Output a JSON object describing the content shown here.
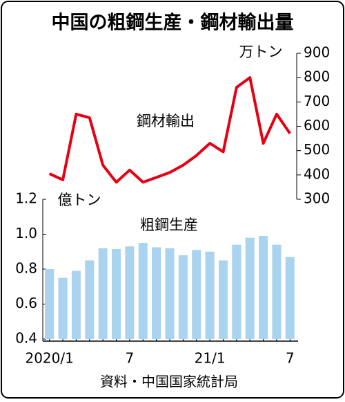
{
  "chart_data": {
    "type": "bar",
    "title": "中国の粗鋼生産・鋼材輸出量",
    "categories": [
      "2020/1",
      null,
      null,
      null,
      null,
      null,
      "7",
      null,
      null,
      null,
      null,
      null,
      "21/1",
      null,
      null,
      null,
      null,
      null,
      "7"
    ],
    "series": [
      {
        "name": "粗鋼生産",
        "type": "bar",
        "color": "#a9d3ee",
        "values": [
          0.8,
          0.75,
          0.79,
          0.85,
          0.92,
          0.915,
          0.93,
          0.95,
          0.925,
          0.92,
          0.88,
          0.91,
          0.9,
          0.85,
          0.94,
          0.98,
          0.99,
          0.94,
          0.87
        ]
      },
      {
        "name": "鋼材輸出",
        "type": "line",
        "axis": "y2",
        "color": "#e60012",
        "values": [
          405,
          380,
          650,
          635,
          440,
          370,
          420,
          370,
          390,
          410,
          440,
          480,
          530,
          495,
          760,
          800,
          530,
          650,
          570
        ]
      }
    ],
    "y_label": "億トン",
    "y2_label": "万トン",
    "ylim": [
      0.4,
      1.2
    ],
    "yticks": [
      0.4,
      0.6,
      0.8,
      {
        "value": 1,
        "label": "1.0"
      },
      1.2
    ],
    "y2lim": [
      300,
      900
    ],
    "y2ticks": [
      300,
      400,
      500,
      600,
      700,
      800,
      900
    ],
    "source": "資料・中国国家統計局"
  }
}
